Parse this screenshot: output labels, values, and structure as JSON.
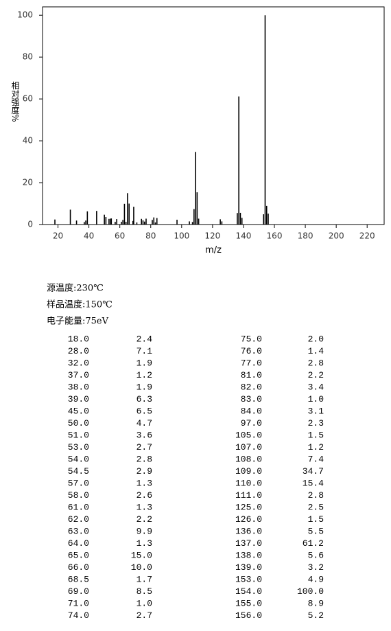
{
  "chart_data": {
    "type": "bar",
    "ylabel": "相对强度%",
    "xlabel": "m/z",
    "x": [
      18,
      28,
      32,
      37,
      38,
      39,
      45,
      50,
      51,
      53,
      54,
      54.5,
      57,
      58,
      61,
      62,
      63,
      64,
      65,
      66,
      68.5,
      69,
      71,
      74,
      75,
      76,
      77,
      81,
      82,
      83,
      84,
      97,
      105,
      107,
      108,
      109,
      110,
      111,
      125,
      126,
      136,
      137,
      138,
      139,
      153,
      154,
      155,
      156
    ],
    "values": [
      2.4,
      7.1,
      1.9,
      1.2,
      1.9,
      6.3,
      6.5,
      4.7,
      3.6,
      2.7,
      2.8,
      2.9,
      1.3,
      2.6,
      1.3,
      2.2,
      9.9,
      1.3,
      15.0,
      10.0,
      1.7,
      8.5,
      1.0,
      2.7,
      2.0,
      1.4,
      2.8,
      2.2,
      3.4,
      1.0,
      3.1,
      2.3,
      1.5,
      1.2,
      7.4,
      34.7,
      15.4,
      2.8,
      2.5,
      1.5,
      5.5,
      61.2,
      5.6,
      3.2,
      4.9,
      100.0,
      8.9,
      5.2
    ],
    "color": "#000000",
    "xlim": [
      10,
      231
    ],
    "ylim": [
      0,
      104
    ],
    "xticks": [
      20,
      40,
      60,
      80,
      100,
      120,
      140,
      160,
      180,
      200,
      220
    ],
    "yticks": [
      0,
      20,
      40,
      60,
      80,
      100
    ],
    "grid": false
  },
  "info": [
    "源温度:230℃",
    "样品温度:150℃",
    "电子能量:75eV"
  ],
  "table": {
    "rows": [
      [
        "18.0",
        "2.4",
        "75.0",
        "2.0"
      ],
      [
        "28.0",
        "7.1",
        "76.0",
        "1.4"
      ],
      [
        "32.0",
        "1.9",
        "77.0",
        "2.8"
      ],
      [
        "37.0",
        "1.2",
        "81.0",
        "2.2"
      ],
      [
        "38.0",
        "1.9",
        "82.0",
        "3.4"
      ],
      [
        "39.0",
        "6.3",
        "83.0",
        "1.0"
      ],
      [
        "45.0",
        "6.5",
        "84.0",
        "3.1"
      ],
      [
        "50.0",
        "4.7",
        "97.0",
        "2.3"
      ],
      [
        "51.0",
        "3.6",
        "105.0",
        "1.5"
      ],
      [
        "53.0",
        "2.7",
        "107.0",
        "1.2"
      ],
      [
        "54.0",
        "2.8",
        "108.0",
        "7.4"
      ],
      [
        "54.5",
        "2.9",
        "109.0",
        "34.7"
      ],
      [
        "57.0",
        "1.3",
        "110.0",
        "15.4"
      ],
      [
        "58.0",
        "2.6",
        "111.0",
        "2.8"
      ],
      [
        "61.0",
        "1.3",
        "125.0",
        "2.5"
      ],
      [
        "62.0",
        "2.2",
        "126.0",
        "1.5"
      ],
      [
        "63.0",
        "9.9",
        "136.0",
        "5.5"
      ],
      [
        "64.0",
        "1.3",
        "137.0",
        "61.2"
      ],
      [
        "65.0",
        "15.0",
        "138.0",
        "5.6"
      ],
      [
        "66.0",
        "10.0",
        "139.0",
        "3.2"
      ],
      [
        "68.5",
        "1.7",
        "153.0",
        "4.9"
      ],
      [
        "69.0",
        "8.5",
        "154.0",
        "100.0"
      ],
      [
        "71.0",
        "1.0",
        "155.0",
        "8.9"
      ],
      [
        "74.0",
        "2.7",
        "156.0",
        "5.2"
      ]
    ]
  }
}
